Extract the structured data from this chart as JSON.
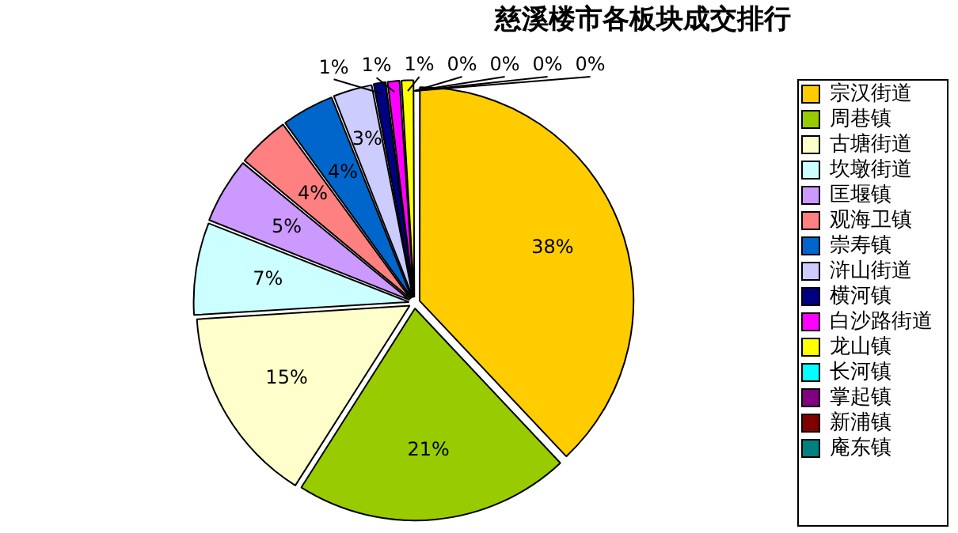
{
  "chart_data": {
    "type": "pie",
    "title": "慈溪楼市各板块成交排行",
    "categories": [
      "宗汉街道",
      "周巷镇",
      "古塘街道",
      "坎墩街道",
      "匡堰镇",
      "观海卫镇",
      "崇寿镇",
      "浒山街道",
      "横河镇",
      "白沙路街道",
      "龙山镇",
      "长河镇",
      "掌起镇",
      "新浦镇",
      "庵东镇"
    ],
    "values": [
      38,
      21,
      15,
      7,
      5,
      4,
      4,
      3,
      1,
      1,
      1,
      0,
      0,
      0,
      0
    ],
    "colors": [
      "#ffcc00",
      "#99cc00",
      "#ffffcc",
      "#ccffff",
      "#cc99ff",
      "#ff8080",
      "#0066cc",
      "#ccccff",
      "#000080",
      "#ff00ff",
      "#ffff00",
      "#00ffff",
      "#800080",
      "#800000",
      "#008080"
    ],
    "value_labels": [
      "38%",
      "21%",
      "15%",
      "7%",
      "5%",
      "4%",
      "4%",
      "3%",
      "1%",
      "1%",
      "1%",
      "0%",
      "0%",
      "0%",
      "0%"
    ],
    "legend": "right"
  }
}
